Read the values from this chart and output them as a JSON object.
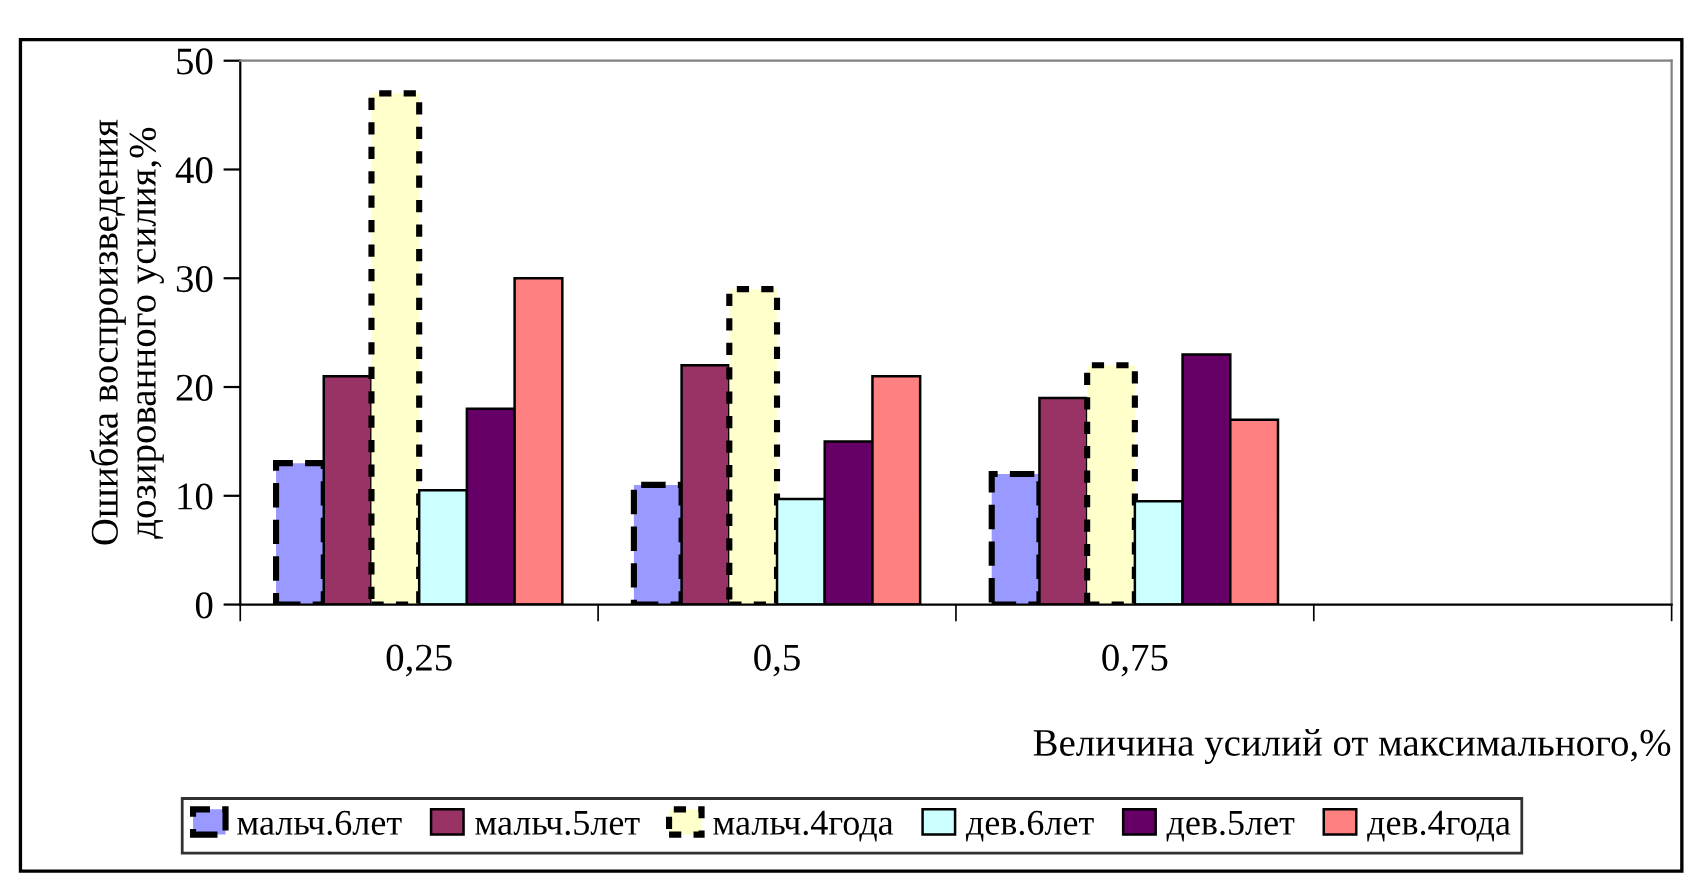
{
  "chart_data": {
    "type": "bar",
    "xlabel": "Величина усилий от максимального,%",
    "ylabel": "Ошибка воспроизведения\nдозированного усилия,%",
    "categories": [
      "0,25",
      "0,5",
      "0,75",
      null
    ],
    "series": [
      {
        "name": "мальч.6лет",
        "color": "#9999ff",
        "line_style": "dashed",
        "values": [
          13,
          11,
          12,
          null
        ]
      },
      {
        "name": "мальч.5лет",
        "color": "#993366",
        "line_style": "solid",
        "values": [
          21,
          22,
          19,
          null
        ]
      },
      {
        "name": "мальч.4года",
        "color": "#ffffcc",
        "line_style": "dotted",
        "values": [
          47,
          29,
          22,
          null
        ]
      },
      {
        "name": "дев.6лет",
        "color": "#ccffff",
        "line_style": "solid",
        "values": [
          10.5,
          9.7,
          9.5,
          null
        ]
      },
      {
        "name": "дев.5лет",
        "color": "#660066",
        "line_style": "solid",
        "values": [
          18,
          15,
          23,
          null
        ]
      },
      {
        "name": "дев.4года",
        "color": "#ff8080",
        "line_style": "solid",
        "values": [
          30,
          21,
          17,
          null
        ]
      }
    ],
    "ylim": [
      0,
      50
    ],
    "yticks": [
      0,
      10,
      20,
      30,
      40,
      50
    ],
    "grid": false,
    "legend": "bottom"
  }
}
